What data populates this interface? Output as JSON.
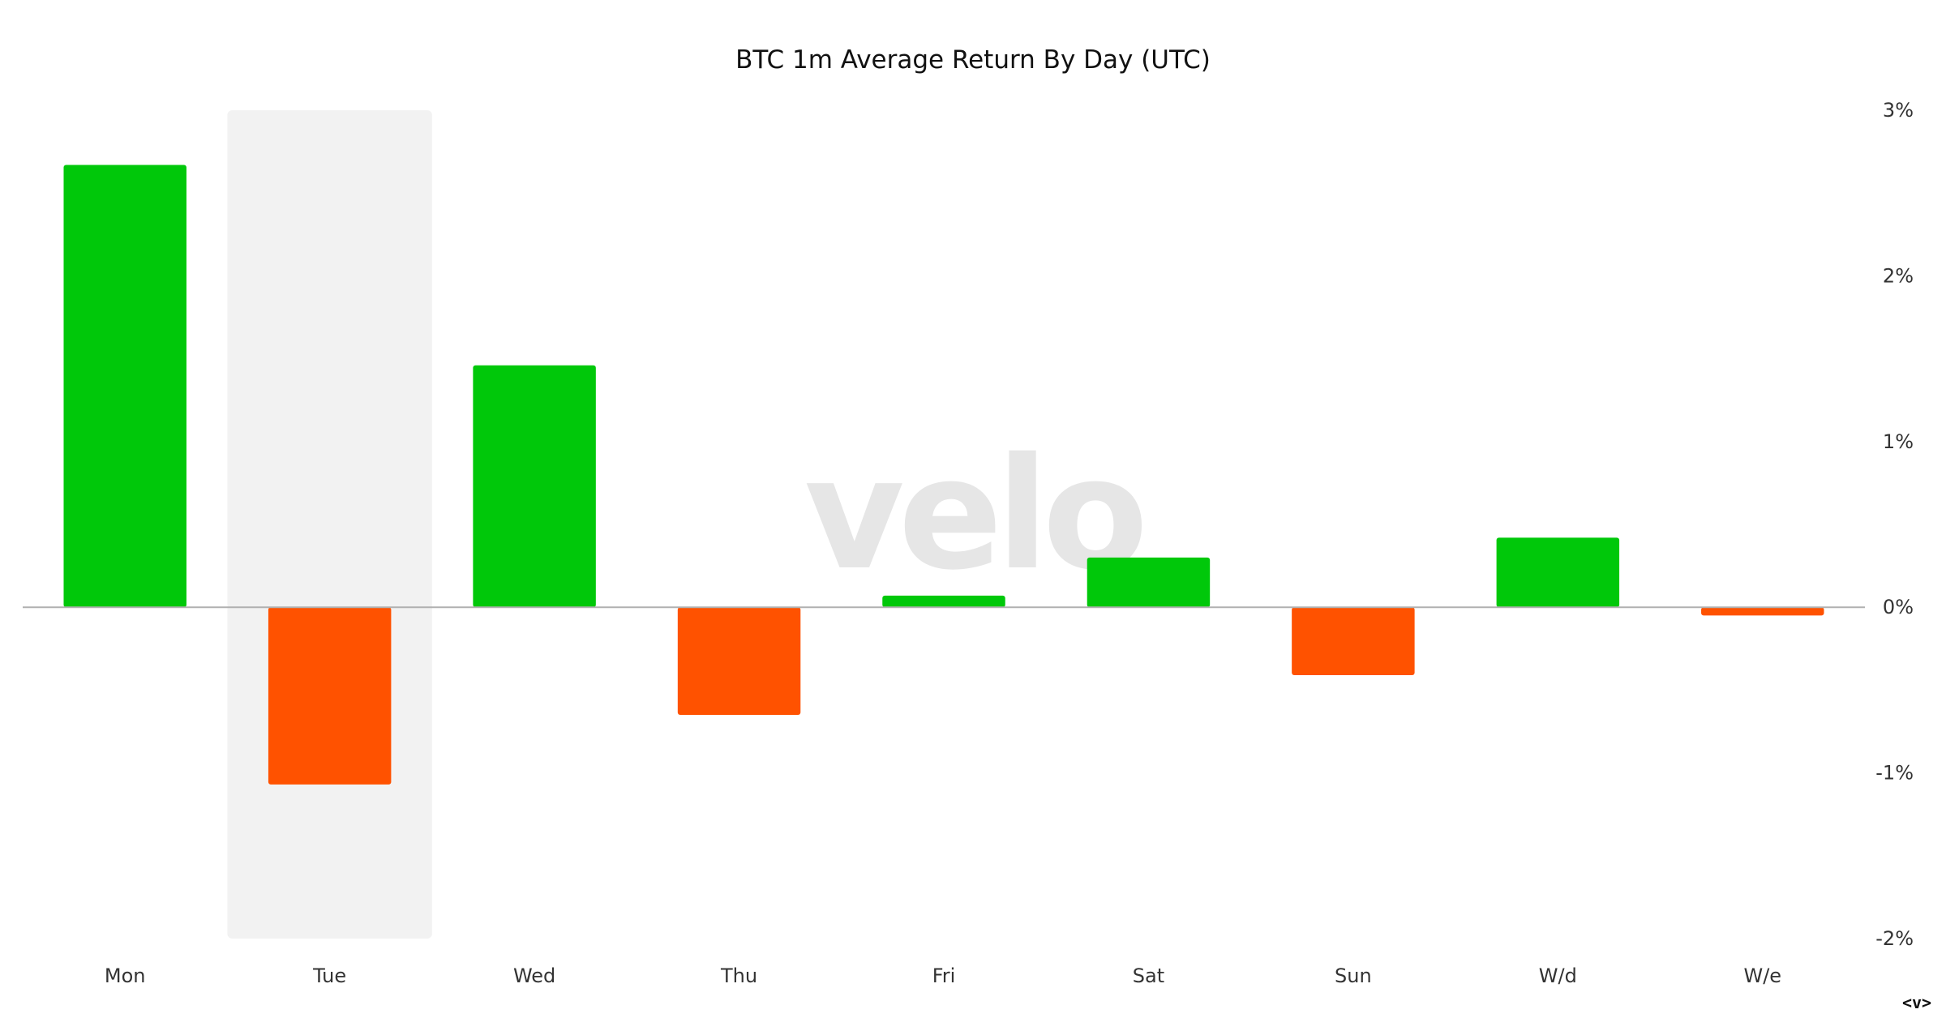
{
  "chart_data": {
    "type": "bar",
    "title": "BTC 1m Average Return By Day (UTC)",
    "categories": [
      "Mon",
      "Tue",
      "Wed",
      "Thu",
      "Fri",
      "Sat",
      "Sun",
      "W/d",
      "W/e"
    ],
    "values": [
      2.67,
      -1.07,
      1.46,
      -0.65,
      0.07,
      0.3,
      -0.41,
      0.42,
      -0.05
    ],
    "unit": "%",
    "ylim": [
      -2,
      3
    ],
    "yticks": [
      3,
      2,
      1,
      0,
      -1,
      -2
    ],
    "ytick_labels": [
      "3%",
      "2%",
      "1%",
      "0%",
      "-1%",
      "-2%"
    ],
    "y_axis_side": "right",
    "highlighted_category": "Tue",
    "colors": {
      "positive": "#00c80a",
      "negative": "#ff5200",
      "highlight": "#f2f2f2",
      "zero_line": "#b0b0b0"
    },
    "grid": false,
    "legend": "none"
  },
  "watermark": "velo",
  "corner_mark": "<v>"
}
